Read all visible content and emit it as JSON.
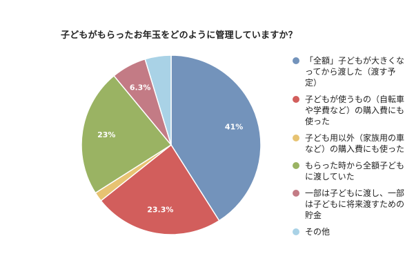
{
  "chart_data": {
    "type": "pie",
    "title": "子どもがもらったお年玉をどのように管理していますか？",
    "categories": [
      "「全額」子どもが大きくなってから渡した（渡す予定）",
      "子どもが使うもの（自転車や学費など）の購入費にも使った",
      "子ども用以外（家族用の車など）の購入費にも使った",
      "もらった時から全額子どもに渡していた",
      "一部は子どもに渡し、一部は子どもに将来渡すための貯金",
      "その他"
    ],
    "legend_display": [
      "「全額」子どもが大きくな\nってから渡した（渡す予\n定）",
      "子どもが使うもの（自転車\nや学費など）の購入費にも\n使った",
      "子ども用以外（家族用の車\nなど）の購入費にも使った",
      "もらった時から全額子ども\nに渡していた",
      "一部は子どもに渡し、一部\nは子どもに将来渡すための\n貯金",
      "その他"
    ],
    "values": [
      41,
      23.3,
      1.7,
      23,
      6.3,
      4.7
    ],
    "data_labels": [
      "41%",
      "23.3%",
      "",
      "23%",
      "6.3%",
      ""
    ],
    "colors": [
      "#7393bb",
      "#d25e5c",
      "#e7c372",
      "#9ab363",
      "#c37b85",
      "#a9d2e6"
    ],
    "legend_position": "right"
  }
}
